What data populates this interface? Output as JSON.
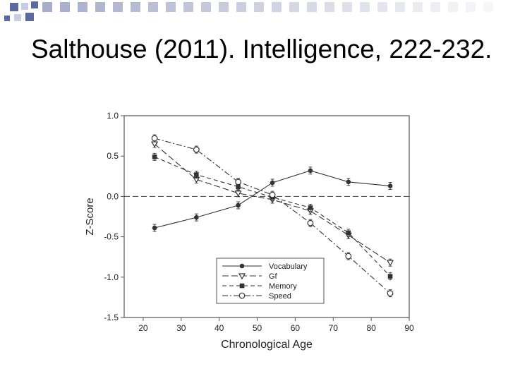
{
  "slide": {
    "title": "Salthouse (2011). Intelligence, 222-232."
  },
  "colors": {
    "deco_square": "#5f6a9c",
    "deco_square_light": "#c9cde2",
    "frame": "#555555",
    "series": "#333333"
  },
  "chart_data": {
    "type": "line",
    "xlabel": "Chronological Age",
    "ylabel": "Z-Score",
    "xlim": [
      15,
      90
    ],
    "ylim": [
      -1.5,
      1.0
    ],
    "xticks": [
      "20",
      "30",
      "40",
      "50",
      "60",
      "70",
      "80",
      "90"
    ],
    "yticks": [
      "1.0",
      "0.5",
      "0.0",
      "-0.5",
      "-1.0",
      "-1.5"
    ],
    "reference_line_y": 0.0,
    "legend_position": "bottom-center",
    "series": [
      {
        "name": "Vocabulary",
        "marker": "filled-circle",
        "dash": "solid",
        "x": [
          23,
          34,
          45,
          54,
          64,
          74,
          85
        ],
        "y": [
          -0.39,
          -0.26,
          -0.11,
          0.17,
          0.32,
          0.18,
          0.13
        ]
      },
      {
        "name": "Gf",
        "marker": "open-triangle-down",
        "dash": "long-dash",
        "x": [
          23,
          34,
          45,
          54,
          64,
          74,
          85
        ],
        "y": [
          0.65,
          0.21,
          0.04,
          -0.04,
          -0.18,
          -0.48,
          -0.82
        ]
      },
      {
        "name": "Memory",
        "marker": "filled-square",
        "dash": "dash",
        "x": [
          23,
          34,
          45,
          54,
          64,
          74,
          85
        ],
        "y": [
          0.49,
          0.27,
          0.12,
          -0.01,
          -0.14,
          -0.45,
          -0.99
        ]
      },
      {
        "name": "Speed",
        "marker": "open-circle",
        "dash": "dash-dot",
        "x": [
          23,
          34,
          45,
          54,
          64,
          74,
          85
        ],
        "y": [
          0.72,
          0.58,
          0.18,
          0.02,
          -0.33,
          -0.74,
          -1.2
        ]
      }
    ]
  }
}
